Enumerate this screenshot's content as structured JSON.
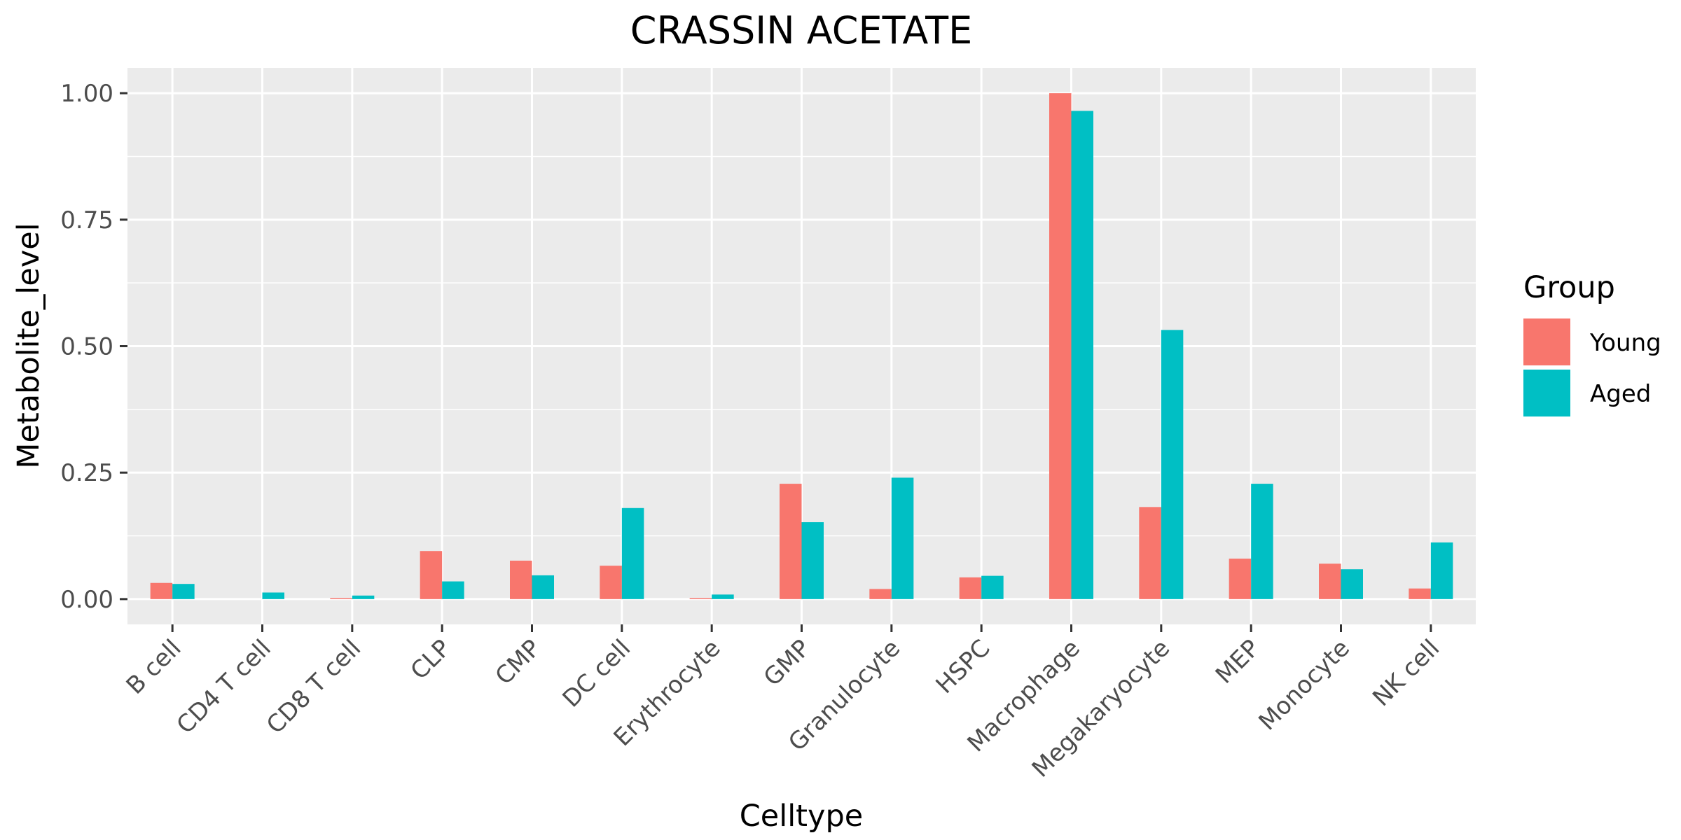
{
  "chart_data": {
    "type": "bar",
    "title": "CRASSIN ACETATE",
    "xlabel": "Celltype",
    "ylabel": "Metabolite_level",
    "ylim": [
      -0.05,
      1.05
    ],
    "yticks": [
      0.0,
      0.25,
      0.5,
      0.75,
      1.0
    ],
    "ytick_labels": [
      "0.00",
      "0.25",
      "0.50",
      "0.75",
      "1.00"
    ],
    "grid": true,
    "legend": {
      "title": "Group",
      "placement": "right"
    },
    "categories": [
      "B cell",
      "CD4 T cell",
      "CD8 T cell",
      "CLP",
      "CMP",
      "DC cell",
      "Erythrocyte",
      "GMP",
      "Granulocyte",
      "HSPC",
      "Macrophage",
      "Megakaryocyte",
      "MEP",
      "Monocyte",
      "NK cell"
    ],
    "series": [
      {
        "name": "Young",
        "color": "#F8766D",
        "values": [
          0.032,
          0.0,
          0.002,
          0.095,
          0.076,
          0.066,
          0.002,
          0.228,
          0.02,
          0.043,
          1.0,
          0.182,
          0.08,
          0.07,
          0.021
        ]
      },
      {
        "name": "Aged",
        "color": "#00BFC4",
        "values": [
          0.03,
          0.013,
          0.007,
          0.035,
          0.047,
          0.18,
          0.009,
          0.152,
          0.24,
          0.046,
          0.965,
          0.532,
          0.228,
          0.059,
          0.112
        ]
      }
    ]
  }
}
